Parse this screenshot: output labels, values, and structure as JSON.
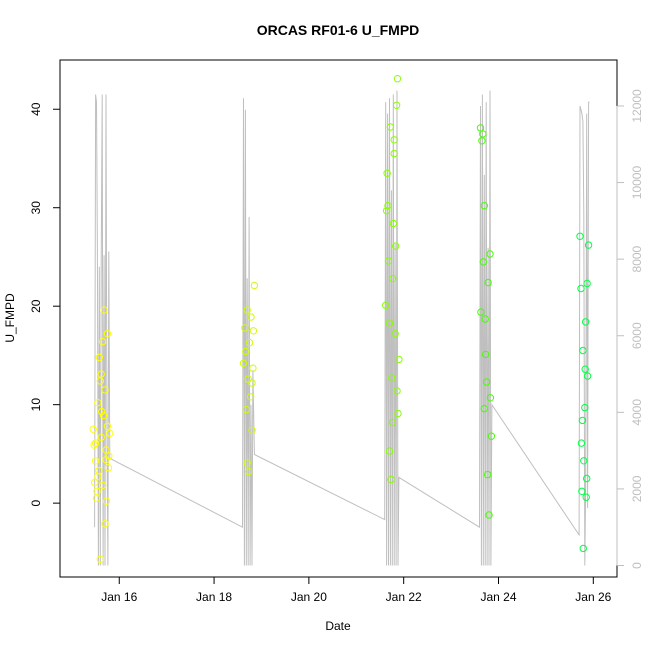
{
  "chart_data": {
    "type": "scatter",
    "title": "ORCAS RF01-6 U_FMPD",
    "xlabel": "Date",
    "ylabel": "U_FMPD",
    "x_ticks": [
      "Jan 16",
      "Jan 18",
      "Jan 20",
      "Jan 22",
      "Jan 24",
      "Jan 26"
    ],
    "x_tick_values": [
      16,
      18,
      20,
      22,
      24,
      26
    ],
    "xlim": [
      14.75,
      26.5
    ],
    "ylim": [
      -7.5,
      45
    ],
    "y_ticks": [
      0,
      10,
      20,
      30,
      40
    ],
    "y2_ticks": [
      0,
      2000,
      4000,
      6000,
      8000,
      10000,
      12000
    ],
    "y2lim": [
      -300,
      13200
    ],
    "grid": false,
    "series": [
      {
        "color": "#ffff00",
        "x": [
          15.45,
          15.48,
          15.5,
          15.52,
          15.55,
          15.57,
          15.6,
          15.62,
          15.65,
          15.67,
          15.7,
          15.72,
          15.75,
          15.77,
          15.8,
          15.47,
          15.53,
          15.58,
          15.63,
          15.68,
          15.73,
          15.78,
          15.5,
          15.6,
          15.7,
          15.55,
          15.65,
          15.75,
          15.62,
          15.72
        ],
        "y": [
          7.5,
          2.1,
          4.3,
          0.5,
          10.2,
          3.3,
          12.4,
          6.7,
          1.8,
          8.9,
          -2.1,
          5.4,
          17.2,
          3.6,
          7.1,
          5.9,
          1.2,
          14.8,
          9.3,
          19.6,
          0.2,
          4.8,
          6.1,
          -5.7,
          11.5,
          2.7,
          16.4,
          7.8,
          13.1,
          4.4
        ]
      },
      {
        "color": "#ccff00",
        "x": [
          18.62,
          18.65,
          18.68,
          18.7,
          18.72,
          18.75,
          18.78,
          18.8,
          18.82,
          18.85,
          18.67,
          18.73,
          18.77,
          18.83,
          18.7,
          18.8
        ],
        "y": [
          14.2,
          17.8,
          9.5,
          4.1,
          12.6,
          16.3,
          18.9,
          7.4,
          13.7,
          22.1,
          15.4,
          3.2,
          10.8,
          17.5,
          19.6,
          12.2
        ]
      },
      {
        "color": "#88ff00",
        "x": [
          21.62,
          21.65,
          21.68,
          21.7,
          21.72,
          21.75,
          21.78,
          21.8,
          21.82,
          21.85,
          21.88,
          21.9,
          21.67,
          21.73,
          21.77,
          21.83,
          21.87,
          21.7,
          21.8,
          21.76,
          21.64,
          21.86
        ],
        "y": [
          20.1,
          33.5,
          24.6,
          5.3,
          38.2,
          12.7,
          28.4,
          36.9,
          17.2,
          40.4,
          9.1,
          14.6,
          30.2,
          2.4,
          22.8,
          26.1,
          43.1,
          18.3,
          35.5,
          8.2,
          29.7,
          11.4
        ]
      },
      {
        "color": "#44ff00",
        "x": [
          23.62,
          23.65,
          23.68,
          23.7,
          23.72,
          23.75,
          23.78,
          23.8,
          23.82,
          23.85,
          23.67,
          23.73,
          23.77,
          23.63,
          23.83,
          23.7
        ],
        "y": [
          38.1,
          36.8,
          24.5,
          9.6,
          18.7,
          12.3,
          22.4,
          -1.2,
          25.3,
          6.8,
          37.5,
          15.1,
          2.9,
          19.4,
          10.7,
          30.2
        ]
      },
      {
        "color": "#00ff44",
        "x": [
          25.72,
          25.74,
          25.76,
          25.78,
          25.8,
          25.82,
          25.84,
          25.86,
          25.88,
          25.9,
          25.75,
          25.79,
          25.83,
          25.87,
          25.77,
          25.85
        ],
        "y": [
          27.1,
          21.8,
          1.2,
          15.5,
          4.3,
          9.7,
          18.4,
          2.5,
          12.9,
          26.2,
          6.1,
          -4.6,
          13.6,
          22.3,
          8.4,
          0.6
        ]
      }
    ],
    "secondary_line": {
      "color": "#bfbfbf",
      "x": [
        15.48,
        15.5,
        15.52,
        15.54,
        15.56,
        15.58,
        15.6,
        15.62,
        15.64,
        15.66,
        15.68,
        15.7,
        15.72,
        15.74,
        15.76,
        15.78,
        15.8,
        15.8,
        18.6,
        18.62,
        18.64,
        18.66,
        18.68,
        18.7,
        18.72,
        18.74,
        18.76,
        18.78,
        18.8,
        18.82,
        18.85,
        18.85,
        21.6,
        21.62,
        21.64,
        21.66,
        21.68,
        21.7,
        21.72,
        21.74,
        21.76,
        21.78,
        21.8,
        21.82,
        21.84,
        21.86,
        21.88,
        21.9,
        21.9,
        23.6,
        23.62,
        23.64,
        23.66,
        23.68,
        23.7,
        23.72,
        23.74,
        23.76,
        23.78,
        23.8,
        23.82,
        23.84,
        23.86,
        23.86,
        25.7,
        25.72,
        25.74,
        25.76,
        25.78,
        25.8,
        25.82,
        25.84,
        25.86,
        25.88,
        25.9,
        25.92
      ],
      "y": [
        1000,
        12300,
        12100,
        8200,
        0,
        7800,
        0,
        7900,
        12300,
        0,
        8100,
        0,
        12300,
        3900,
        0,
        8200,
        2800,
        2800,
        1000,
        12200,
        0,
        11900,
        0,
        7500,
        0,
        9100,
        0,
        4200,
        0,
        5100,
        2900,
        2900,
        1200,
        12100,
        0,
        11800,
        0,
        12200,
        0,
        9800,
        0,
        12300,
        0,
        8400,
        0,
        12400,
        0,
        2300,
        2300,
        1000,
        12000,
        0,
        12300,
        0,
        10200,
        0,
        12100,
        0,
        8300,
        0,
        12400,
        0,
        4200,
        4200,
        800,
        12000,
        11900,
        11800,
        11600,
        9200,
        0,
        2100,
        11800,
        1500,
        12100,
        12100
      ]
    }
  }
}
